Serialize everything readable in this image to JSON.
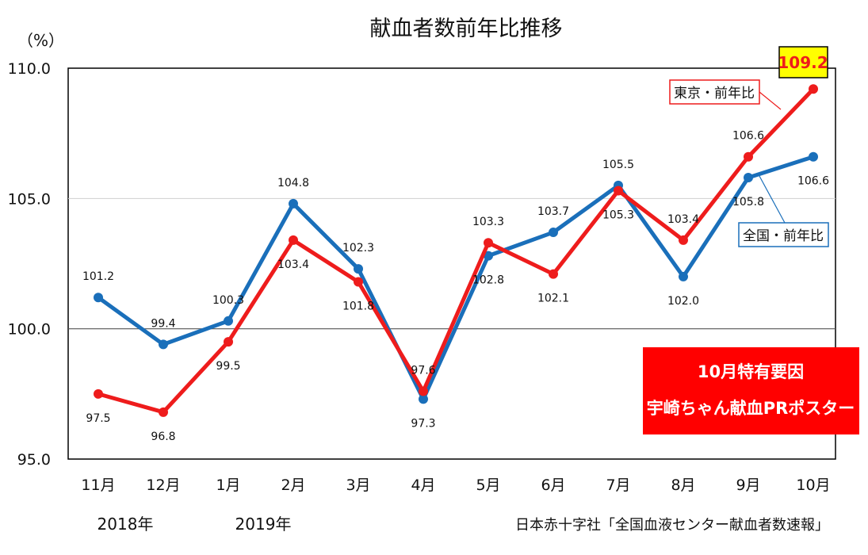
{
  "chart_data": {
    "type": "line",
    "title": "献血者数前年比推移",
    "unit_label": "（%）",
    "categories": [
      "11月",
      "12月",
      "1月",
      "2月",
      "3月",
      "4月",
      "5月",
      "6月",
      "7月",
      "8月",
      "9月",
      "10月"
    ],
    "yticks": [
      "95.0",
      "100.0",
      "105.0",
      "110.0"
    ],
    "ylim": [
      95,
      110
    ],
    "grid": true,
    "series": [
      {
        "name": "全国・前年比",
        "color": "#1a6fba",
        "values": [
          101.2,
          99.4,
          100.3,
          104.8,
          102.3,
          97.3,
          102.8,
          103.7,
          105.5,
          102.0,
          105.8,
          106.6
        ],
        "labels": [
          "101.2",
          "99.4",
          "100.3",
          "104.8",
          "102.3",
          "97.3",
          "102.8",
          "103.7",
          "105.5",
          "102.0",
          "105.8",
          "106.6"
        ]
      },
      {
        "name": "東京・前年比",
        "color": "#ee1c1c",
        "values": [
          97.5,
          96.8,
          99.5,
          103.4,
          101.8,
          97.6,
          103.3,
          102.1,
          105.3,
          103.4,
          106.6,
          109.2
        ],
        "labels": [
          "97.5",
          "96.8",
          "99.5",
          "103.4",
          "101.8",
          "97.6",
          "103.3",
          "102.1",
          "105.3",
          "103.4",
          "106.6",
          "109.2"
        ]
      }
    ],
    "highlight_value": "109.2",
    "year_labels": [
      "2018年",
      "2019年"
    ],
    "annotation": {
      "line1": "10月特有要因",
      "line2": "宇崎ちゃん献血PRポスター",
      "background": "#ff0000",
      "text_color": "#ffffff"
    },
    "source": "日本赤十字社「全国血液センター献血者数速報」",
    "highlight_box_color": "#ffff00"
  }
}
